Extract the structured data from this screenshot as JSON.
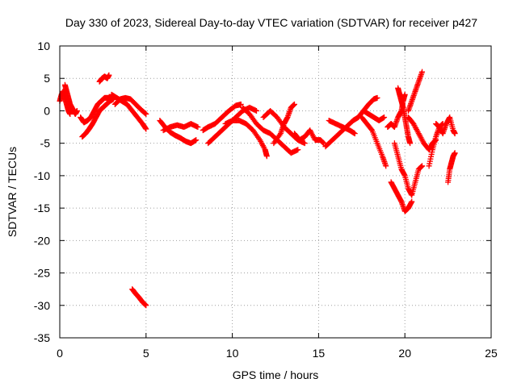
{
  "chart_data": {
    "type": "scatter",
    "title": "Day 330 of 2023, Sidereal Day-to-day VTEC variation (SDTVAR) for receiver p427",
    "xlabel": "GPS time / hours",
    "ylabel": "SDTVAR / TECUs",
    "xlim": [
      0,
      25
    ],
    "ylim": [
      -35,
      10
    ],
    "xticks": [
      "0",
      "5",
      "10",
      "15",
      "20",
      "25"
    ],
    "yticks": [
      "10",
      "5",
      "0",
      "-5",
      "-10",
      "-15",
      "-20",
      "-25",
      "-30",
      "-35"
    ],
    "marker": "+",
    "grid": true,
    "colors": {
      "series": "#ff0000",
      "frame": "#000000",
      "grid": "#a0a0a0"
    },
    "series": [
      {
        "name": "seg1",
        "points": [
          [
            0.0,
            1.5
          ],
          [
            0.1,
            2.5
          ],
          [
            0.2,
            3.0
          ],
          [
            0.3,
            2.0
          ],
          [
            0.4,
            1.0
          ],
          [
            0.5,
            0.0
          ],
          [
            0.6,
            -0.5
          ]
        ]
      },
      {
        "name": "seg2",
        "points": [
          [
            0.3,
            4.0
          ],
          [
            0.4,
            3.0
          ],
          [
            0.5,
            2.0
          ],
          [
            0.6,
            1.0
          ],
          [
            0.7,
            0.5
          ],
          [
            0.8,
            0.0
          ],
          [
            0.9,
            -0.5
          ],
          [
            1.0,
            0.0
          ]
        ]
      },
      {
        "name": "seg3",
        "points": [
          [
            1.2,
            -1.0
          ],
          [
            1.4,
            -1.8
          ],
          [
            1.6,
            -1.5
          ],
          [
            1.8,
            -1.0
          ],
          [
            2.0,
            0.0
          ],
          [
            2.2,
            1.0
          ],
          [
            2.4,
            1.5
          ],
          [
            2.6,
            2.0
          ],
          [
            2.8,
            2.0
          ],
          [
            3.0,
            2.0
          ]
        ]
      },
      {
        "name": "seg4",
        "points": [
          [
            1.3,
            -4.0
          ],
          [
            1.5,
            -3.5
          ],
          [
            1.7,
            -2.8
          ],
          [
            1.9,
            -2.0
          ],
          [
            2.1,
            -1.0
          ],
          [
            2.3,
            0.0
          ],
          [
            2.5,
            0.5
          ],
          [
            2.7,
            1.0
          ],
          [
            2.9,
            1.5
          ],
          [
            3.1,
            1.8
          ]
        ]
      },
      {
        "name": "seg5",
        "points": [
          [
            2.3,
            4.5
          ],
          [
            2.45,
            5.0
          ],
          [
            2.6,
            5.3
          ],
          [
            2.75,
            5.0
          ],
          [
            2.85,
            5.5
          ]
        ]
      },
      {
        "name": "seg6",
        "points": [
          [
            3.0,
            2.5
          ],
          [
            3.3,
            2.0
          ],
          [
            3.6,
            1.5
          ],
          [
            3.9,
            1.0
          ],
          [
            4.2,
            0.0
          ],
          [
            4.5,
            -1.0
          ],
          [
            4.8,
            -2.0
          ],
          [
            5.0,
            -2.8
          ]
        ]
      },
      {
        "name": "seg7",
        "points": [
          [
            3.2,
            1.0
          ],
          [
            3.5,
            1.8
          ],
          [
            3.8,
            2.0
          ],
          [
            4.1,
            1.8
          ],
          [
            4.4,
            1.0
          ],
          [
            4.7,
            0.2
          ],
          [
            5.0,
            -0.5
          ]
        ]
      },
      {
        "name": "seg8",
        "points": [
          [
            4.2,
            -27.5
          ],
          [
            4.4,
            -28.2
          ],
          [
            4.6,
            -28.8
          ],
          [
            4.8,
            -29.5
          ],
          [
            5.0,
            -30.0
          ]
        ]
      },
      {
        "name": "seg9",
        "points": [
          [
            5.8,
            -1.5
          ],
          [
            6.1,
            -2.5
          ],
          [
            6.4,
            -3.3
          ],
          [
            6.7,
            -3.8
          ],
          [
            7.0,
            -4.2
          ],
          [
            7.3,
            -4.7
          ],
          [
            7.6,
            -5.0
          ],
          [
            7.9,
            -4.5
          ]
        ]
      },
      {
        "name": "seg10",
        "points": [
          [
            6.0,
            -3.0
          ],
          [
            6.4,
            -2.5
          ],
          [
            6.8,
            -2.2
          ],
          [
            7.2,
            -2.5
          ],
          [
            7.6,
            -2.0
          ],
          [
            8.0,
            -2.5
          ]
        ]
      },
      {
        "name": "seg11",
        "points": [
          [
            8.3,
            -3.0
          ],
          [
            8.6,
            -2.5
          ],
          [
            9.0,
            -2.0
          ],
          [
            9.4,
            -1.0
          ],
          [
            9.8,
            0.0
          ],
          [
            10.2,
            0.8
          ],
          [
            10.5,
            1.0
          ]
        ]
      },
      {
        "name": "seg12",
        "points": [
          [
            8.6,
            -5.0
          ],
          [
            9.0,
            -4.0
          ],
          [
            9.4,
            -3.0
          ],
          [
            9.8,
            -2.0
          ],
          [
            10.2,
            -1.0
          ],
          [
            10.6,
            0.0
          ],
          [
            11.0,
            0.5
          ],
          [
            11.4,
            0.0
          ]
        ]
      },
      {
        "name": "seg13",
        "points": [
          [
            9.6,
            -2.0
          ],
          [
            10.0,
            -1.5
          ],
          [
            10.4,
            -1.5
          ],
          [
            10.8,
            -2.0
          ],
          [
            11.2,
            -3.0
          ],
          [
            11.6,
            -4.5
          ],
          [
            11.9,
            -6.0
          ],
          [
            12.0,
            -7.0
          ]
        ]
      },
      {
        "name": "seg14",
        "points": [
          [
            10.6,
            0.5
          ],
          [
            11.0,
            -0.5
          ],
          [
            11.4,
            -2.0
          ],
          [
            11.8,
            -3.0
          ],
          [
            12.2,
            -3.5
          ],
          [
            12.6,
            -4.5
          ],
          [
            13.0,
            -5.5
          ],
          [
            13.4,
            -6.5
          ],
          [
            13.8,
            -6.0
          ]
        ]
      },
      {
        "name": "seg15",
        "points": [
          [
            11.8,
            -1.0
          ],
          [
            12.2,
            0.0
          ],
          [
            12.6,
            -1.0
          ],
          [
            13.0,
            -2.5
          ],
          [
            13.4,
            -3.5
          ],
          [
            13.8,
            -4.5
          ],
          [
            14.2,
            -5.0
          ]
        ]
      },
      {
        "name": "seg16",
        "points": [
          [
            12.4,
            -5.0
          ],
          [
            12.8,
            -3.5
          ],
          [
            13.0,
            -2.0
          ],
          [
            13.2,
            -1.0
          ],
          [
            13.4,
            0.5
          ],
          [
            13.6,
            1.0
          ]
        ]
      },
      {
        "name": "seg17",
        "points": [
          [
            13.6,
            -3.5
          ],
          [
            13.9,
            -4.5
          ],
          [
            14.2,
            -4.0
          ],
          [
            14.5,
            -3.0
          ],
          [
            14.8,
            -4.5
          ],
          [
            15.1,
            -4.5
          ],
          [
            15.3,
            -5.0
          ]
        ]
      },
      {
        "name": "seg18",
        "points": [
          [
            15.6,
            -1.5
          ],
          [
            16.0,
            -2.0
          ],
          [
            16.4,
            -2.5
          ],
          [
            16.8,
            -3.0
          ],
          [
            17.1,
            -3.5
          ]
        ]
      },
      {
        "name": "seg19",
        "points": [
          [
            15.4,
            -5.5
          ],
          [
            15.8,
            -4.5
          ],
          [
            16.2,
            -3.5
          ],
          [
            16.6,
            -2.5
          ],
          [
            17.0,
            -1.5
          ],
          [
            17.3,
            -1.0
          ]
        ]
      },
      {
        "name": "seg20",
        "points": [
          [
            17.3,
            -1.0
          ],
          [
            17.6,
            0.0
          ],
          [
            17.9,
            1.0
          ],
          [
            18.2,
            1.8
          ],
          [
            18.4,
            2.0
          ]
        ]
      },
      {
        "name": "seg21",
        "points": [
          [
            17.5,
            -1.0
          ],
          [
            17.8,
            -2.0
          ],
          [
            18.1,
            -3.0
          ],
          [
            18.4,
            -5.0
          ],
          [
            18.7,
            -7.0
          ],
          [
            18.9,
            -8.5
          ]
        ]
      },
      {
        "name": "seg22",
        "points": [
          [
            17.6,
            0.0
          ],
          [
            17.9,
            -0.5
          ],
          [
            18.2,
            -1.0
          ],
          [
            18.5,
            -1.5
          ],
          [
            18.8,
            -1.0
          ]
        ]
      },
      {
        "name": "seg23",
        "points": [
          [
            19.0,
            -2.5
          ],
          [
            19.2,
            -2.0
          ],
          [
            19.4,
            -2.5
          ],
          [
            19.6,
            -1.0
          ],
          [
            19.8,
            0.0
          ],
          [
            19.9,
            1.5
          ],
          [
            20.0,
            2.5
          ]
        ]
      },
      {
        "name": "seg24",
        "points": [
          [
            19.2,
            -11.0
          ],
          [
            19.4,
            -12.0
          ],
          [
            19.6,
            -13.0
          ],
          [
            19.8,
            -14.0
          ],
          [
            20.0,
            -15.5
          ],
          [
            20.2,
            -15.0
          ],
          [
            20.4,
            -14.0
          ]
        ]
      },
      {
        "name": "seg25",
        "points": [
          [
            19.4,
            -5.0
          ],
          [
            19.6,
            -7.0
          ],
          [
            19.8,
            -9.0
          ],
          [
            20.0,
            -10.0
          ],
          [
            20.2,
            -12.0
          ],
          [
            20.4,
            -13.0
          ],
          [
            20.6,
            -11.0
          ],
          [
            20.8,
            -9.0
          ],
          [
            21.0,
            -8.5
          ]
        ]
      },
      {
        "name": "seg26",
        "points": [
          [
            19.6,
            3.5
          ],
          [
            19.7,
            2.5
          ],
          [
            19.8,
            1.5
          ],
          [
            19.9,
            0.5
          ],
          [
            20.0,
            -1.0
          ],
          [
            20.1,
            -2.5
          ],
          [
            20.2,
            -4.0
          ],
          [
            20.3,
            -5.0
          ]
        ]
      },
      {
        "name": "seg27",
        "points": [
          [
            20.2,
            0.0
          ],
          [
            20.4,
            1.5
          ],
          [
            20.6,
            3.0
          ],
          [
            20.8,
            4.5
          ],
          [
            21.0,
            6.0
          ]
        ]
      },
      {
        "name": "seg28",
        "points": [
          [
            20.2,
            -1.0
          ],
          [
            20.5,
            -2.0
          ],
          [
            20.8,
            -3.5
          ],
          [
            21.1,
            -5.0
          ],
          [
            21.4,
            -6.0
          ],
          [
            21.6,
            -5.0
          ],
          [
            21.8,
            -4.5
          ]
        ]
      },
      {
        "name": "seg29",
        "points": [
          [
            21.4,
            -8.5
          ],
          [
            21.6,
            -6.0
          ],
          [
            21.8,
            -4.0
          ],
          [
            22.0,
            -2.5
          ],
          [
            22.2,
            -2.0
          ]
        ]
      },
      {
        "name": "seg30",
        "points": [
          [
            21.8,
            -2.0
          ],
          [
            22.0,
            -2.5
          ],
          [
            22.2,
            -3.5
          ],
          [
            22.4,
            -2.0
          ],
          [
            22.6,
            -1.0
          ],
          [
            22.8,
            -3.0
          ],
          [
            22.9,
            -3.5
          ]
        ]
      },
      {
        "name": "seg31",
        "points": [
          [
            22.5,
            -11.0
          ],
          [
            22.6,
            -9.0
          ],
          [
            22.7,
            -8.0
          ],
          [
            22.8,
            -7.0
          ],
          [
            22.9,
            -6.5
          ]
        ]
      }
    ]
  }
}
